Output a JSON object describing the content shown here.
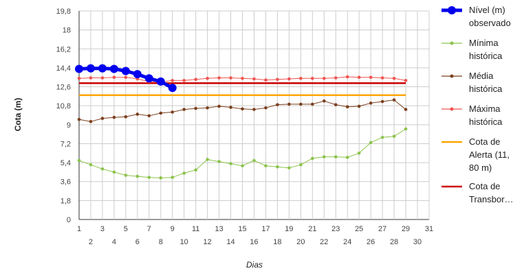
{
  "chart_data": {
    "type": "line",
    "xlabel": "Dias",
    "ylabel": "Cota (m)",
    "xlim": [
      1,
      31
    ],
    "ylim": [
      0,
      19.8
    ],
    "yticks": [
      "0",
      "1,8",
      "3,6",
      "5,4",
      "7,2",
      "9",
      "10,8",
      "12,6",
      "14,4",
      "16,2",
      "18",
      "19,8"
    ],
    "xticks_top": [
      "1",
      "3",
      "5",
      "7",
      "9",
      "11",
      "13",
      "15",
      "17",
      "19",
      "21",
      "23",
      "25",
      "27",
      "29",
      "31"
    ],
    "xticks_bottom": [
      "2",
      "4",
      "6",
      "8",
      "10",
      "12",
      "14",
      "16",
      "18",
      "20",
      "22",
      "24",
      "26",
      "28",
      "30"
    ],
    "grid": true,
    "legend_position": "right",
    "series": [
      {
        "name": "Nível (m) observado",
        "legend_lines": [
          "Nível (m)",
          "observado"
        ],
        "color": "#0000ee",
        "x": [
          1,
          2,
          3,
          4,
          5,
          6,
          7,
          8,
          9
        ],
        "values": [
          14.3,
          14.35,
          14.35,
          14.3,
          14.1,
          13.8,
          13.4,
          13.1,
          12.5
        ]
      },
      {
        "name": "Mínima histórica",
        "legend_lines": [
          "Mínima",
          "histórica"
        ],
        "color": "#8bc34a",
        "x": [
          1,
          2,
          3,
          4,
          5,
          6,
          7,
          8,
          9,
          10,
          11,
          12,
          13,
          14,
          15,
          16,
          17,
          18,
          19,
          20,
          21,
          22,
          23,
          24,
          25,
          26,
          27,
          28,
          29
        ],
        "values": [
          5.6,
          5.2,
          4.8,
          4.5,
          4.2,
          4.1,
          4.0,
          3.95,
          4.0,
          4.4,
          4.7,
          5.7,
          5.5,
          5.3,
          5.1,
          5.6,
          5.1,
          5.0,
          4.9,
          5.2,
          5.8,
          5.95,
          5.95,
          5.9,
          6.3,
          7.3,
          7.8,
          7.9,
          8.6
        ]
      },
      {
        "name": "Média histórica",
        "legend_lines": [
          "Média",
          "histórica"
        ],
        "color": "#7b3f1d",
        "x": [
          1,
          2,
          3,
          4,
          5,
          6,
          7,
          8,
          9,
          10,
          11,
          12,
          13,
          14,
          15,
          16,
          17,
          18,
          19,
          20,
          21,
          22,
          23,
          24,
          25,
          26,
          27,
          28,
          29
        ],
        "values": [
          9.5,
          9.3,
          9.6,
          9.7,
          9.75,
          10.0,
          9.85,
          10.1,
          10.2,
          10.45,
          10.55,
          10.6,
          10.75,
          10.65,
          10.5,
          10.45,
          10.6,
          10.9,
          10.95,
          10.95,
          10.95,
          11.25,
          10.9,
          10.7,
          10.75,
          11.05,
          11.2,
          11.35,
          10.45
        ]
      },
      {
        "name": "Máxima histórica",
        "legend_lines": [
          "Máxima",
          "histórica"
        ],
        "color": "#ef5350",
        "x": [
          1,
          2,
          3,
          4,
          5,
          6,
          7,
          8,
          9,
          10,
          11,
          12,
          13,
          14,
          15,
          16,
          17,
          18,
          19,
          20,
          21,
          22,
          23,
          24,
          25,
          26,
          27,
          28,
          29
        ],
        "values": [
          13.4,
          13.45,
          13.45,
          13.5,
          13.5,
          13.35,
          13.1,
          13.05,
          13.2,
          13.2,
          13.3,
          13.4,
          13.45,
          13.45,
          13.4,
          13.35,
          13.25,
          13.3,
          13.35,
          13.4,
          13.4,
          13.4,
          13.45,
          13.55,
          13.5,
          13.5,
          13.45,
          13.4,
          13.2
        ]
      },
      {
        "name": "Cota de Alerta (11, 80 m)",
        "legend_lines": [
          "Cota de",
          "Alerta (11,",
          "80 m)"
        ],
        "color": "#ffa500",
        "x": [
          1,
          29
        ],
        "values": [
          11.8,
          11.8
        ]
      },
      {
        "name": "Cota de Transbor…",
        "legend_lines": [
          "Cota de",
          "Transbor…"
        ],
        "color": "#cc0000",
        "x": [
          1,
          29
        ],
        "values": [
          12.95,
          12.95
        ]
      }
    ]
  }
}
